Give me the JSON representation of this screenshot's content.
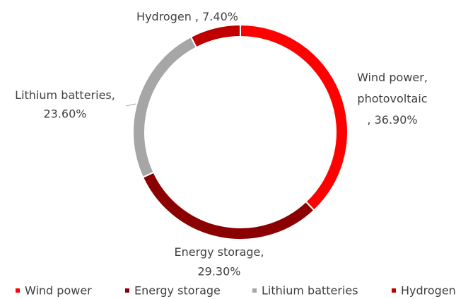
{
  "chart_data": {
    "type": "pie",
    "donut": true,
    "categories": [
      "Wind power",
      "Energy storage",
      "Lithium batteries",
      "Hydrogen"
    ],
    "label_names": [
      [
        "Wind power,",
        "photovoltaic",
        ","
      ],
      [
        "Energy storage,"
      ],
      [
        "Lithium batteries,"
      ],
      [
        "Hydrogen ,"
      ]
    ],
    "values": [
      36.9,
      29.3,
      23.6,
      7.4
    ],
    "value_labels": [
      "36.90%",
      "29.30%",
      "23.60%",
      "7.40%"
    ],
    "colors": [
      "#ff0000",
      "#8b0000",
      "#a6a6a6",
      "#c00000"
    ],
    "legend": "bottom"
  }
}
